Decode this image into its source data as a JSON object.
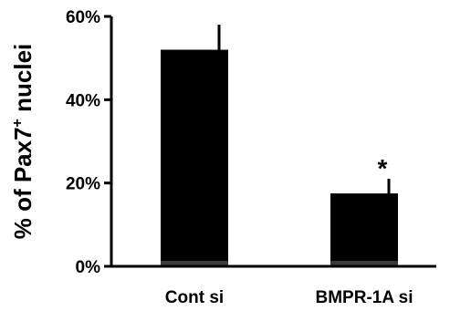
{
  "chart_data": {
    "type": "bar",
    "title": "",
    "ylabel": "% of Pax7",
    "ylabel_superscript": "+",
    "ylabel_suffix": " nuclei",
    "xlabel": "",
    "categories": [
      "Cont si",
      "BMPR-1A si"
    ],
    "values": [
      52,
      17.5
    ],
    "error_upper": [
      6,
      3.5
    ],
    "significance": [
      "",
      "*"
    ],
    "ylim": [
      0,
      60
    ],
    "yticks": [
      0,
      20,
      40,
      60
    ],
    "ytick_labels": [
      "0%",
      "20%",
      "40%",
      "60%"
    ],
    "grid": false,
    "legend": "none",
    "colors": {
      "bar": "#000000",
      "bar_base": "#3a3a3a",
      "axis": "#000000"
    }
  }
}
